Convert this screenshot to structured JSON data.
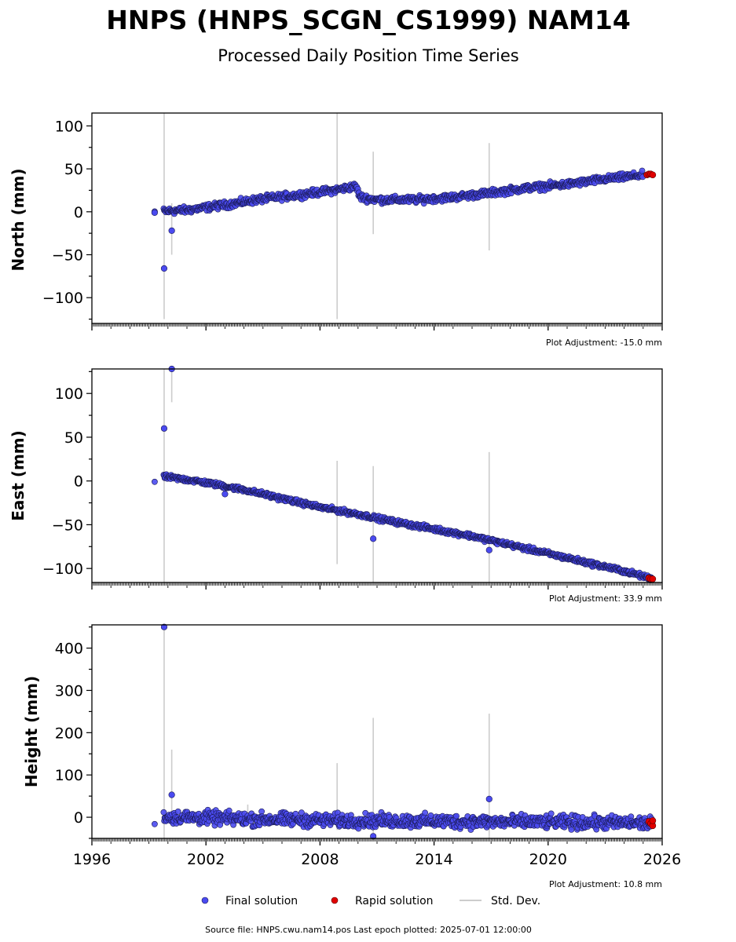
{
  "header": {
    "title": "HNPS (HNPS_SCGN_CS1999) NAM14",
    "subtitle": "Processed Daily Position Time Series"
  },
  "footer": {
    "source": "Source file: HNPS.cwu.nam14.pos  Last epoch plotted: 2025-07-01 12:00:00"
  },
  "legend": {
    "final": "Final solution",
    "rapid": "Rapid solution",
    "std": "Std. Dev."
  },
  "colors": {
    "final": "#4a4af0",
    "rapid": "#e00000",
    "std": "#cccccc",
    "marker_edge": "#1a1a55"
  },
  "chart_data": [
    {
      "type": "scatter",
      "ylabel": "North (mm)",
      "adjustment": "Plot Adjustment: -15.0 mm",
      "xlim": [
        1996,
        2026
      ],
      "ylim": [
        -130,
        115
      ],
      "yticks": [
        100,
        50,
        0,
        -50,
        -100
      ],
      "trend": [
        [
          1999.3,
          0
        ],
        [
          2001.0,
          2
        ],
        [
          2003.0,
          8
        ],
        [
          2005.0,
          15
        ],
        [
          2007.0,
          20
        ],
        [
          2009.0,
          26
        ],
        [
          2009.9,
          30
        ],
        [
          2010.1,
          17
        ],
        [
          2011.0,
          14
        ],
        [
          2013.0,
          14
        ],
        [
          2015.0,
          17
        ],
        [
          2017.0,
          22
        ],
        [
          2019.0,
          28
        ],
        [
          2021.0,
          32
        ],
        [
          2023.0,
          38
        ],
        [
          2025.0,
          43
        ]
      ],
      "scatter_amp": 3,
      "outliers": [
        [
          1999.8,
          -66
        ],
        [
          2000.2,
          -22
        ],
        [
          1999.3,
          -1
        ]
      ],
      "rapid": [
        [
          2025.2,
          43
        ],
        [
          2025.3,
          44
        ],
        [
          2025.4,
          44
        ],
        [
          2025.5,
          43
        ]
      ],
      "stddev": [
        [
          1999.8,
          -125,
          115
        ],
        [
          2000.2,
          -50,
          10
        ],
        [
          2008.9,
          -125,
          115
        ],
        [
          2010.8,
          -26,
          70
        ],
        [
          2016.9,
          -45,
          80
        ]
      ]
    },
    {
      "type": "scatter",
      "ylabel": "East (mm)",
      "adjustment": "Plot Adjustment: 33.9 mm",
      "xlim": [
        1996,
        2026
      ],
      "ylim": [
        -116,
        128
      ],
      "yticks": [
        100,
        50,
        0,
        -50,
        -100
      ],
      "trend": [
        [
          1999.3,
          -1
        ],
        [
          1999.8,
          5
        ],
        [
          2001.5,
          0
        ],
        [
          2004.0,
          -10
        ],
        [
          2006.0,
          -20
        ],
        [
          2008.0,
          -30
        ],
        [
          2010.0,
          -38
        ],
        [
          2012.0,
          -47
        ],
        [
          2014.0,
          -55
        ],
        [
          2016.0,
          -63
        ],
        [
          2018.0,
          -73
        ],
        [
          2020.0,
          -83
        ],
        [
          2022.0,
          -93
        ],
        [
          2024.0,
          -103
        ],
        [
          2025.5,
          -112
        ]
      ],
      "scatter_amp": 2,
      "outliers": [
        [
          1999.8,
          60
        ],
        [
          2000.2,
          128
        ],
        [
          2010.8,
          -66
        ],
        [
          2016.9,
          -79
        ],
        [
          2003.0,
          -15
        ]
      ],
      "rapid": [
        [
          2025.3,
          -111
        ],
        [
          2025.4,
          -112
        ],
        [
          2025.5,
          -112
        ]
      ],
      "stddev": [
        [
          1999.8,
          -116,
          128
        ],
        [
          2000.2,
          90,
          128
        ],
        [
          2008.9,
          -95,
          23
        ],
        [
          2010.8,
          -116,
          17
        ],
        [
          2016.9,
          -116,
          33
        ]
      ]
    },
    {
      "type": "scatter",
      "ylabel": "Height (mm)",
      "adjustment": "Plot Adjustment: 10.8 mm",
      "xlim": [
        1996,
        2026
      ],
      "ylim": [
        -50,
        455
      ],
      "yticks": [
        400,
        300,
        200,
        100,
        0
      ],
      "xticks": [
        1996,
        2002,
        2008,
        2014,
        2020,
        2026
      ],
      "trend": [
        [
          1999.3,
          0
        ],
        [
          2001.0,
          0
        ],
        [
          2003.0,
          -3
        ],
        [
          2005.0,
          -5
        ],
        [
          2007.0,
          -6
        ],
        [
          2009.0,
          -8
        ],
        [
          2011.0,
          -8
        ],
        [
          2013.0,
          -9
        ],
        [
          2015.0,
          -10
        ],
        [
          2017.0,
          -11
        ],
        [
          2019.0,
          -11
        ],
        [
          2021.0,
          -12
        ],
        [
          2023.0,
          -13
        ],
        [
          2025.5,
          -14
        ]
      ],
      "scatter_amp": 12,
      "outliers": [
        [
          1999.8,
          450
        ],
        [
          2000.2,
          53
        ],
        [
          2016.9,
          43
        ],
        [
          2010.8,
          -45
        ]
      ],
      "rapid": [
        [
          2025.3,
          -10
        ],
        [
          2025.4,
          -15
        ],
        [
          2025.5,
          -20
        ],
        [
          2025.5,
          -8
        ]
      ],
      "stddev": [
        [
          1999.8,
          -50,
          450
        ],
        [
          2000.2,
          -10,
          160
        ],
        [
          2004.2,
          -10,
          30
        ],
        [
          2008.9,
          -30,
          128
        ],
        [
          2010.8,
          -50,
          235
        ],
        [
          2016.9,
          -50,
          245
        ]
      ]
    }
  ]
}
